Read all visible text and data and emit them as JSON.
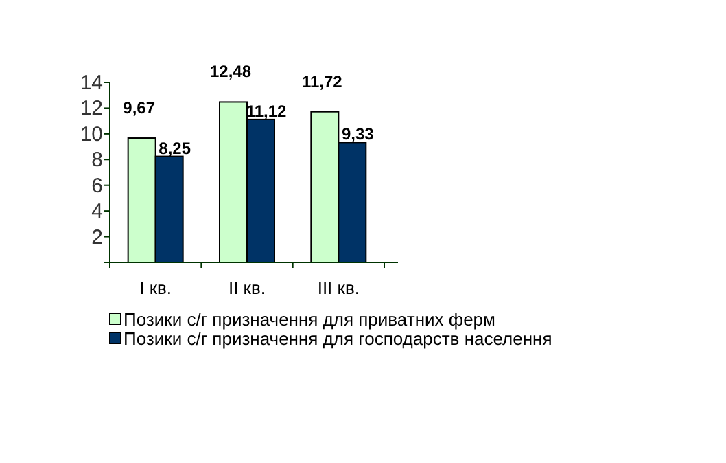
{
  "chart_data": {
    "type": "bar",
    "categories": [
      "I кв.",
      "II кв.",
      "III кв."
    ],
    "series": [
      {
        "name": "Позики с/г призначення для приватних ферм",
        "color": "#ccffcc",
        "values": [
          9.67,
          12.48,
          11.72
        ],
        "value_labels": [
          "9,67",
          "12,48",
          "11,72"
        ]
      },
      {
        "name": "Позики с/г призначення для господарств населення",
        "color": "#003366",
        "values": [
          8.25,
          11.12,
          9.33
        ],
        "value_labels": [
          "8,25",
          "11,12",
          "9,33"
        ]
      }
    ],
    "ylim": [
      0,
      14
    ],
    "yticks": [
      {
        "value": 0,
        "label": null
      },
      2,
      4,
      6,
      8,
      10,
      12,
      14
    ],
    "grid": false,
    "legend": "bottom"
  }
}
